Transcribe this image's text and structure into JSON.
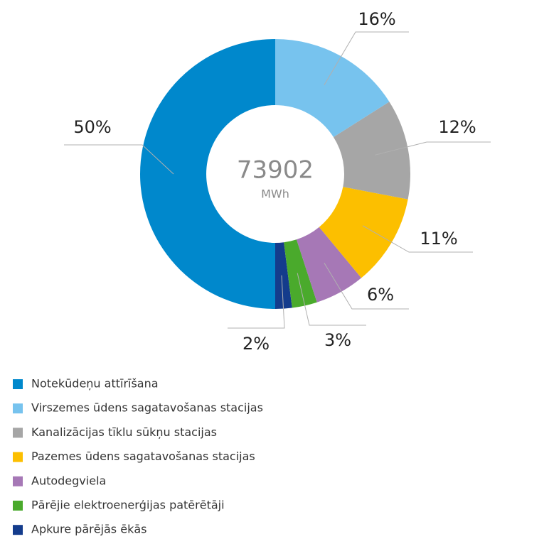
{
  "chart_data": {
    "type": "donut",
    "center_value": "73902",
    "center_unit": "MWh",
    "categories": [
      "Notekūdeņu attīrīšana",
      "Virszemes ūdens sagatavošanas stacijas",
      "Kanalizācijas tīklu sūkņu stacijas",
      "Pazemes ūdens sagatavošanas stacijas",
      "Autodegviela",
      "Pārējie elektroenerģijas patērētāji",
      "Apkure pārējās ēkās"
    ],
    "values": [
      50,
      16,
      12,
      11,
      6,
      3,
      2
    ],
    "value_labels": [
      "50%",
      "16%",
      "12%",
      "11%",
      "6%",
      "3%",
      "2%"
    ],
    "colors": [
      "#0088cc",
      "#77c3ee",
      "#a6a6a6",
      "#fcbf00",
      "#a678b6",
      "#4aaa2c",
      "#143c8c"
    ],
    "legend": "bottom-left"
  }
}
